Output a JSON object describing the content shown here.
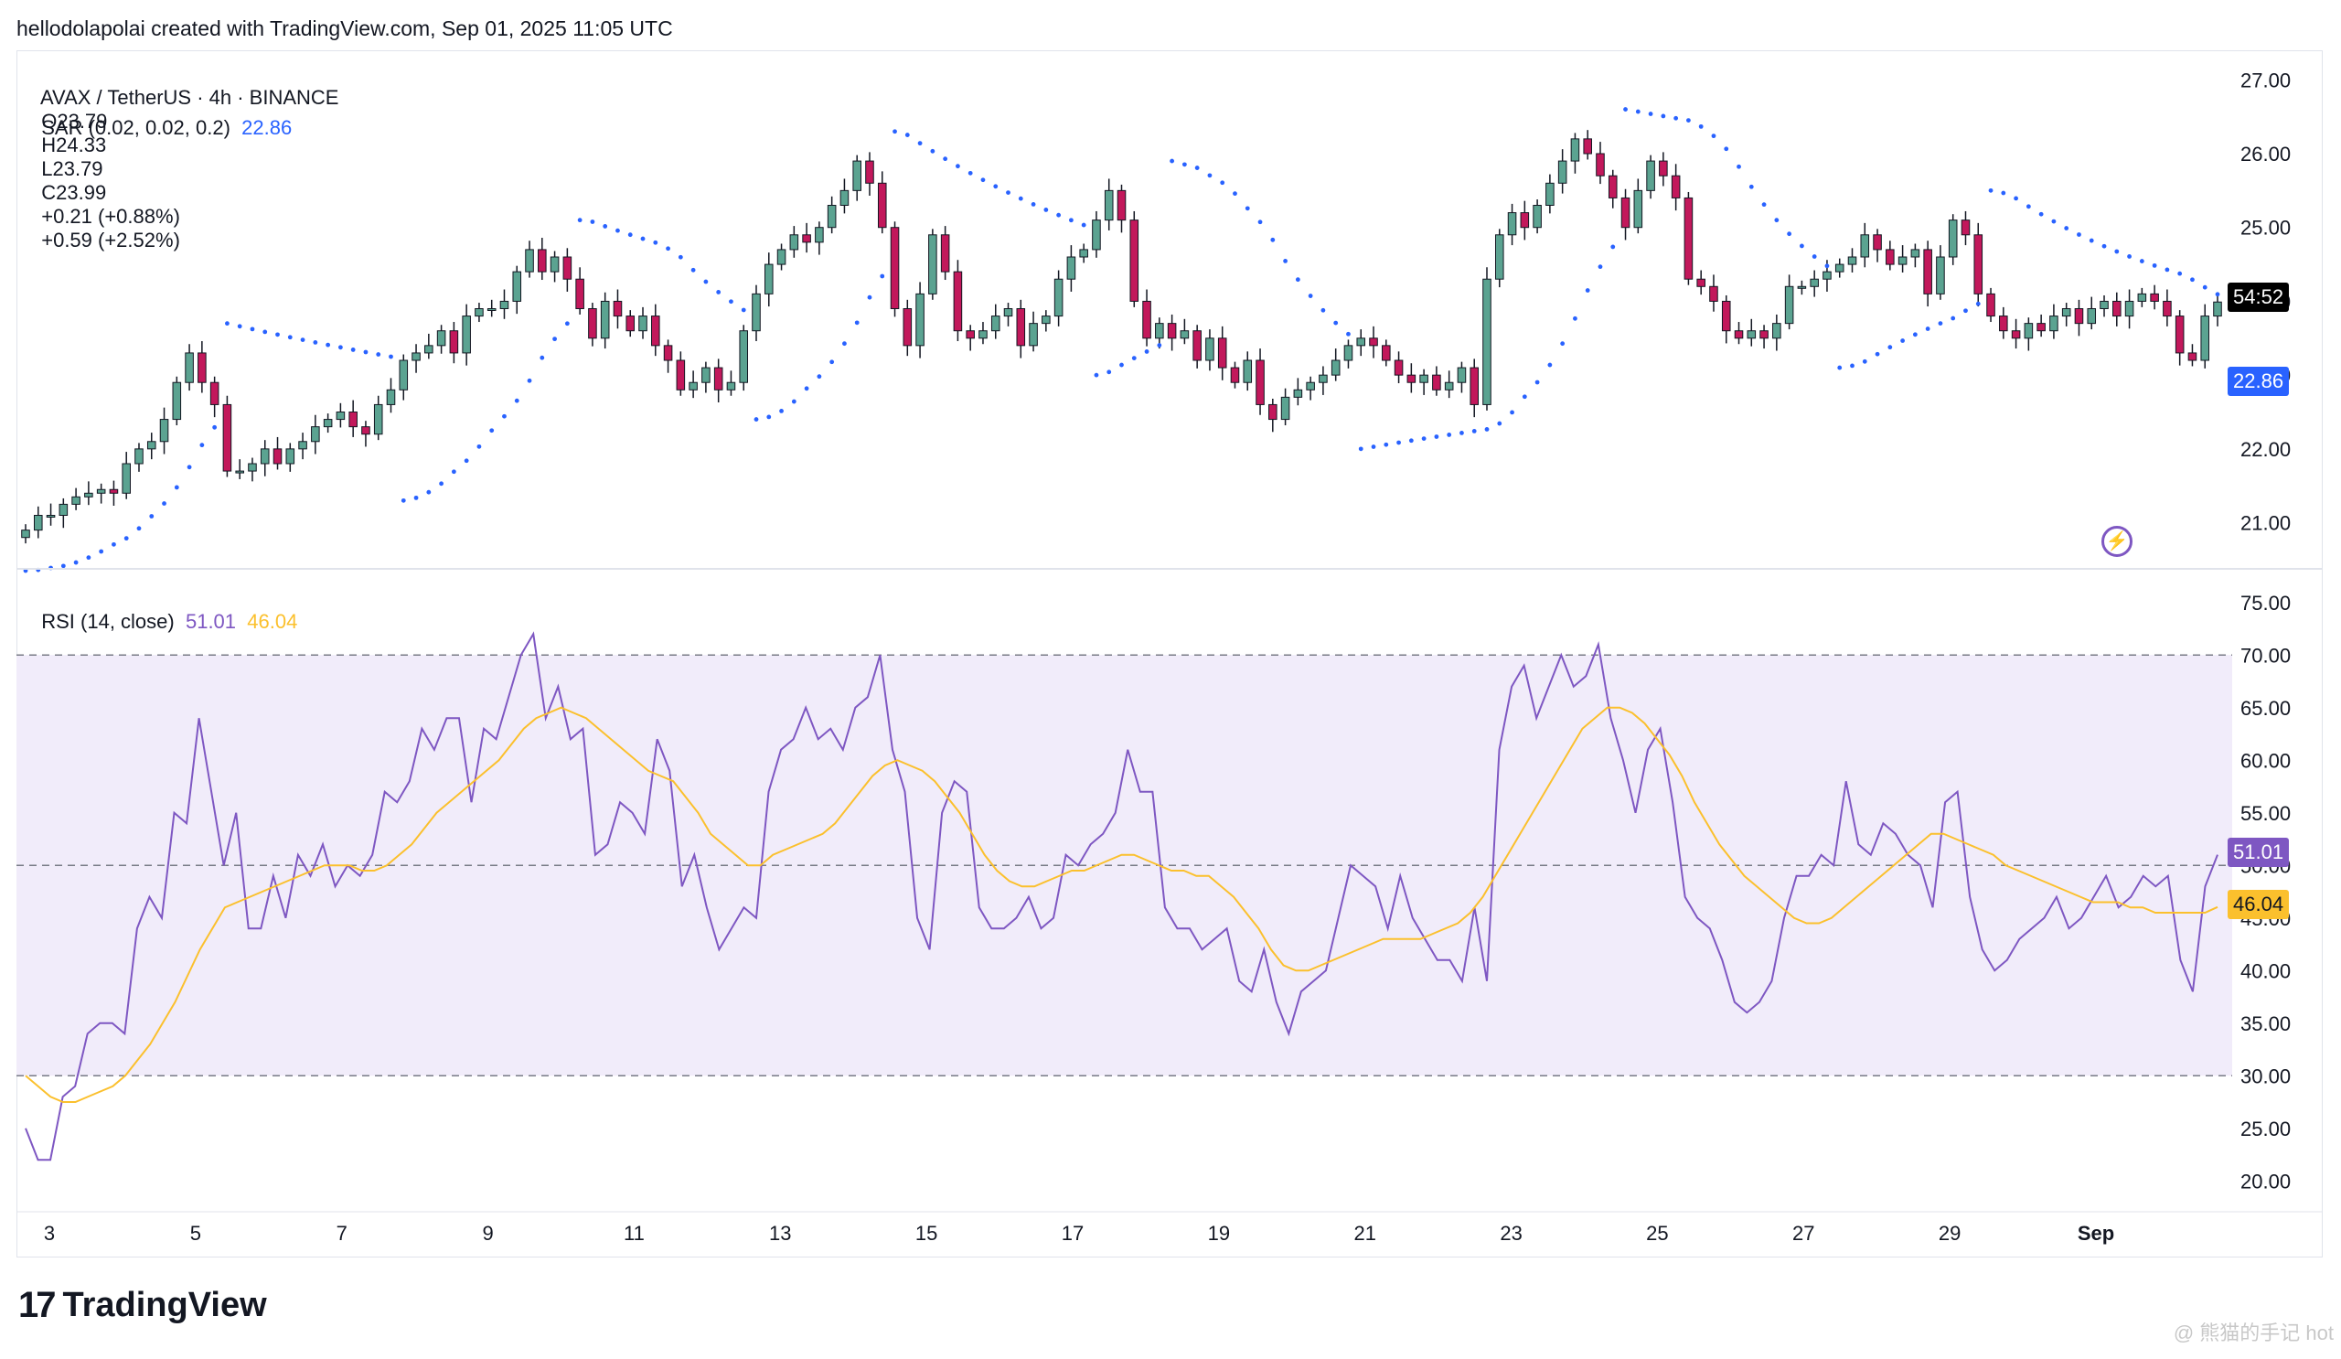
{
  "header": {
    "credit": "hellodolapolai created with TradingView.com, Sep 01, 2025 11:05 UTC"
  },
  "legend": {
    "symbol_line": "AVAX / TetherUS · 4h · BINANCE",
    "open": "O23.79",
    "high": "H24.33",
    "low": "L23.79",
    "close": "C23.99",
    "change": "+0.21 (+0.88%)",
    "change2": "+0.59 (+2.52%)",
    "sar_label": "SAR (0.02, 0.02, 0.2)",
    "sar_value": "22.86",
    "rsi_label": "RSI (14, close)",
    "rsi_value": "51.01",
    "rsi_ma_value": "46.04"
  },
  "badges": {
    "countdown": "54:52",
    "sar": "22.86",
    "rsi": "51.01",
    "rsi_ma": "46.04"
  },
  "footer": {
    "brand": "TradingView",
    "watermark": "@ 熊猫的手记 hot"
  },
  "colors": {
    "up": "#5ba391",
    "down": "#c2185b",
    "sar": "#2962ff",
    "rsi": "#7e57c2",
    "rsi_ma": "#fbc02d",
    "rsi_band": "#f1ecfa"
  },
  "chart_data": [
    {
      "type": "candlestick",
      "title": "AVAX / TetherUS · 4h · BINANCE",
      "y_ticks": [
        "27.00",
        "26.00",
        "25.00",
        "24.00",
        "23.00",
        "22.00",
        "21.00"
      ],
      "ylim": [
        20.4,
        27.4
      ],
      "x_ticks": [
        "3",
        "5",
        "7",
        "9",
        "11",
        "13",
        "15",
        "17",
        "19",
        "21",
        "23",
        "25",
        "27",
        "29",
        "Sep"
      ],
      "closes": [
        20.9,
        21.1,
        21.1,
        21.25,
        21.35,
        21.4,
        21.45,
        21.4,
        21.8,
        22.0,
        22.1,
        22.4,
        22.9,
        23.3,
        22.9,
        22.6,
        21.7,
        21.7,
        21.8,
        22.0,
        21.8,
        22.0,
        22.1,
        22.3,
        22.4,
        22.5,
        22.3,
        22.2,
        22.6,
        22.8,
        23.2,
        23.3,
        23.4,
        23.6,
        23.3,
        23.8,
        23.9,
        23.9,
        24.0,
        24.4,
        24.7,
        24.4,
        24.6,
        24.3,
        23.9,
        23.5,
        24.0,
        23.8,
        23.6,
        23.8,
        23.4,
        23.2,
        22.8,
        22.9,
        23.1,
        22.8,
        22.9,
        23.6,
        24.1,
        24.5,
        24.7,
        24.9,
        24.8,
        25.0,
        25.3,
        25.5,
        25.9,
        25.6,
        25.0,
        23.9,
        23.4,
        24.1,
        24.9,
        24.4,
        23.6,
        23.5,
        23.6,
        23.8,
        23.9,
        23.4,
        23.7,
        23.8,
        24.3,
        24.6,
        24.7,
        25.1,
        25.5,
        25.1,
        24.0,
        23.5,
        23.7,
        23.5,
        23.6,
        23.2,
        23.5,
        23.1,
        22.9,
        23.2,
        22.6,
        22.4,
        22.7,
        22.8,
        22.9,
        23.0,
        23.2,
        23.4,
        23.5,
        23.4,
        23.2,
        23.0,
        22.9,
        23.0,
        22.8,
        22.9,
        23.1,
        22.6,
        24.3,
        24.9,
        25.2,
        25.0,
        25.3,
        25.6,
        25.9,
        26.2,
        26.0,
        25.7,
        25.4,
        25.0,
        25.5,
        25.9,
        25.7,
        25.4,
        24.3,
        24.2,
        24.0,
        23.6,
        23.5,
        23.6,
        23.5,
        23.7,
        24.2,
        24.2,
        24.3,
        24.4,
        24.5,
        24.6,
        24.9,
        24.7,
        24.5,
        24.6,
        24.7,
        24.1,
        24.6,
        25.1,
        24.9,
        24.1,
        23.8,
        23.6,
        23.5,
        23.7,
        23.6,
        23.8,
        23.9,
        23.7,
        23.9,
        24.0,
        23.8,
        24.0,
        24.1,
        24.0,
        23.8,
        23.3,
        23.2,
        23.8,
        23.99
      ]
    },
    {
      "type": "line",
      "title": "RSI (14, close)",
      "y_ticks": [
        "75.00",
        "70.00",
        "65.00",
        "60.00",
        "55.00",
        "50.00",
        "45.00",
        "40.00",
        "35.00",
        "30.00",
        "25.00",
        "20.00"
      ],
      "ylim": [
        17.5,
        77.5
      ],
      "bands": [
        30,
        50,
        70
      ],
      "series": [
        {
          "name": "RSI",
          "values": [
            25,
            22,
            22,
            28,
            29,
            34,
            35,
            35,
            34,
            44,
            47,
            45,
            55,
            54,
            64,
            57,
            50,
            55,
            44,
            44,
            49,
            45,
            51,
            49,
            52,
            48,
            50,
            49,
            51,
            57,
            56,
            58,
            63,
            61,
            64,
            64,
            56,
            63,
            62,
            66,
            70,
            72,
            64,
            67,
            62,
            63,
            51,
            52,
            56,
            55,
            53,
            62,
            59,
            48,
            51,
            46,
            42,
            44,
            46,
            45,
            57,
            61,
            62,
            65,
            62,
            63,
            61,
            65,
            66,
            70,
            61,
            57,
            45,
            42,
            55,
            58,
            57,
            46,
            44,
            44,
            45,
            47,
            44,
            45,
            51,
            50,
            52,
            53,
            55,
            61,
            57,
            57,
            46,
            44,
            44,
            42,
            43,
            44,
            39,
            38,
            42,
            37,
            34,
            38,
            39,
            40,
            45,
            50,
            49,
            48,
            44,
            49,
            45,
            43,
            41,
            41,
            39,
            46,
            39,
            61,
            67,
            69,
            64,
            67,
            70,
            67,
            68,
            71,
            64,
            60,
            55,
            61,
            63,
            56,
            47,
            45,
            44,
            41,
            37,
            36,
            37,
            39,
            45,
            49,
            49,
            51,
            50,
            58,
            52,
            51,
            54,
            53,
            51,
            50,
            46,
            56,
            57,
            47,
            42,
            40,
            41,
            43,
            44,
            45,
            47,
            44,
            45,
            47,
            49,
            46,
            47,
            49,
            48,
            49,
            41,
            38,
            48,
            51.01
          ]
        },
        {
          "name": "RSI-based MA",
          "values": [
            30,
            29,
            28,
            27.5,
            27.5,
            28,
            28.5,
            29,
            30,
            31.5,
            33,
            35,
            37,
            39.5,
            42,
            44,
            46,
            46.5,
            47,
            47.5,
            48,
            48.5,
            49,
            49.5,
            50,
            50,
            50,
            49.5,
            49.5,
            50,
            51,
            52,
            53.5,
            55,
            56,
            57,
            58,
            59,
            60,
            61.5,
            63,
            64,
            64.5,
            65,
            64.5,
            64,
            63,
            62,
            61,
            60,
            59,
            58.5,
            58,
            56.5,
            55,
            53,
            52,
            51,
            50,
            50,
            51,
            51.5,
            52,
            52.5,
            53,
            54,
            55.5,
            57,
            58.5,
            59.5,
            60,
            59.5,
            59,
            58,
            56.5,
            55,
            53,
            51,
            49.5,
            48.5,
            48,
            48,
            48.5,
            49,
            49.5,
            49.5,
            50,
            50.5,
            51,
            51,
            50.5,
            50,
            49.5,
            49.5,
            49,
            49,
            48,
            47,
            45.5,
            44,
            42,
            40.5,
            40,
            40,
            40.5,
            41,
            41.5,
            42,
            42.5,
            43,
            43,
            43,
            43,
            43.5,
            44,
            44.5,
            45.5,
            47,
            49,
            51,
            53,
            55,
            57,
            59,
            61,
            63,
            64,
            65,
            65,
            64.5,
            63.5,
            62,
            60.5,
            58.5,
            56,
            54,
            52,
            50.5,
            49,
            48,
            47,
            46,
            45,
            44.5,
            44.5,
            45,
            46,
            47,
            48,
            49,
            50,
            51,
            52,
            53,
            53,
            52.5,
            52,
            51.5,
            51,
            50,
            49.5,
            49,
            48.5,
            48,
            47.5,
            47,
            46.5,
            46.5,
            46.5,
            46,
            46,
            45.5,
            45.5,
            45.5,
            45.5,
            45.5,
            46.04
          ]
        }
      ]
    }
  ]
}
